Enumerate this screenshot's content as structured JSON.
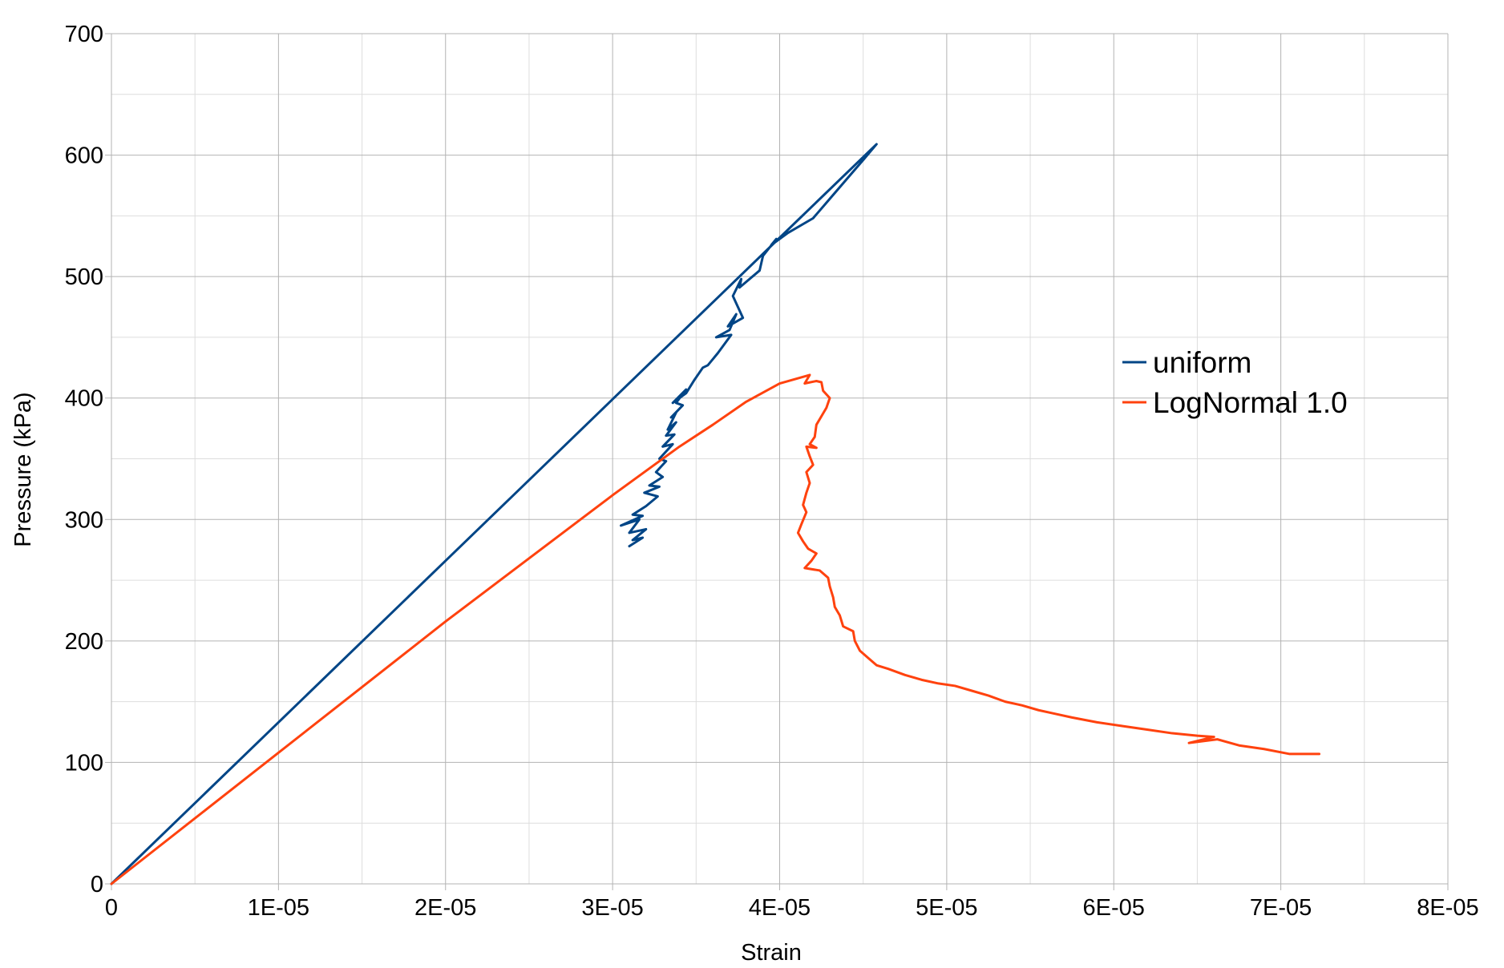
{
  "chart_data": {
    "type": "line",
    "title": "",
    "xlabel": "Strain",
    "ylabel": "Pressure (kPa)",
    "xlim": [
      0,
      8e-05
    ],
    "ylim": [
      0,
      700
    ],
    "x_ticks": [
      "0",
      "1E-05",
      "2E-05",
      "3E-05",
      "4E-05",
      "5E-05",
      "6E-05",
      "7E-05",
      "8E-05"
    ],
    "y_ticks": [
      "0",
      "100",
      "200",
      "300",
      "400",
      "500",
      "600",
      "700"
    ],
    "grid": true,
    "legend_position": "right",
    "series": [
      {
        "name": "uniform",
        "color": "#004586",
        "points": [
          [
            0,
            0
          ],
          [
            1e-05,
            133
          ],
          [
            2e-05,
            266
          ],
          [
            3e-05,
            399
          ],
          [
            4e-05,
            532
          ],
          [
            4.58e-05,
            609
          ],
          [
            4.5e-05,
            596
          ],
          [
            4.4e-05,
            580
          ],
          [
            4.3e-05,
            564
          ],
          [
            4.2e-05,
            548
          ],
          [
            4.05e-05,
            536
          ],
          [
            3.95e-05,
            526
          ],
          [
            3.98e-05,
            531
          ],
          [
            3.9e-05,
            517
          ],
          [
            3.88e-05,
            505
          ],
          [
            3.76e-05,
            491
          ],
          [
            3.77e-05,
            498
          ],
          [
            3.72e-05,
            484
          ],
          [
            3.78e-05,
            466
          ],
          [
            3.69e-05,
            459
          ],
          [
            3.74e-05,
            469
          ],
          [
            3.7e-05,
            456
          ],
          [
            3.62e-05,
            450
          ],
          [
            3.71e-05,
            452
          ],
          [
            3.63e-05,
            437
          ],
          [
            3.57e-05,
            427
          ],
          [
            3.54e-05,
            425
          ],
          [
            3.49e-05,
            415
          ],
          [
            3.44e-05,
            404
          ],
          [
            3.36e-05,
            396
          ],
          [
            3.44e-05,
            407
          ],
          [
            3.38e-05,
            396
          ],
          [
            3.42e-05,
            394
          ],
          [
            3.35e-05,
            384
          ],
          [
            3.38e-05,
            388
          ],
          [
            3.33e-05,
            374
          ],
          [
            3.38e-05,
            380
          ],
          [
            3.32e-05,
            369
          ],
          [
            3.37e-05,
            370
          ],
          [
            3.3e-05,
            360
          ],
          [
            3.36e-05,
            362
          ],
          [
            3.28e-05,
            350
          ],
          [
            3.32e-05,
            348
          ],
          [
            3.26e-05,
            339
          ],
          [
            3.3e-05,
            335
          ],
          [
            3.22e-05,
            328
          ],
          [
            3.28e-05,
            327
          ],
          [
            3.19e-05,
            322
          ],
          [
            3.27e-05,
            319
          ],
          [
            3.2e-05,
            311
          ],
          [
            3.12e-05,
            304
          ],
          [
            3.18e-05,
            303
          ],
          [
            3.05e-05,
            295
          ],
          [
            3.16e-05,
            300
          ],
          [
            3.1e-05,
            289
          ],
          [
            3.2e-05,
            292
          ],
          [
            3.12e-05,
            283
          ],
          [
            3.18e-05,
            285
          ],
          [
            3.1e-05,
            278
          ]
        ]
      },
      {
        "name": "LogNormal 1.0",
        "color": "#ff420e",
        "points": [
          [
            0,
            0
          ],
          [
            1e-05,
            108
          ],
          [
            2e-05,
            216
          ],
          [
            3e-05,
            320
          ],
          [
            3.4e-05,
            360
          ],
          [
            3.6e-05,
            378
          ],
          [
            3.8e-05,
            397
          ],
          [
            4e-05,
            412
          ],
          [
            4.18e-05,
            419
          ],
          [
            4.15e-05,
            412
          ],
          [
            4.22e-05,
            414
          ],
          [
            4.25e-05,
            413
          ],
          [
            4.26e-05,
            406
          ],
          [
            4.3e-05,
            400
          ],
          [
            4.28e-05,
            392
          ],
          [
            4.25e-05,
            385
          ],
          [
            4.22e-05,
            378
          ],
          [
            4.21e-05,
            368
          ],
          [
            4.18e-05,
            362
          ],
          [
            4.22e-05,
            359
          ],
          [
            4.16e-05,
            360
          ],
          [
            4.18e-05,
            352
          ],
          [
            4.2e-05,
            345
          ],
          [
            4.16e-05,
            339
          ],
          [
            4.18e-05,
            330
          ],
          [
            4.16e-05,
            322
          ],
          [
            4.14e-05,
            312
          ],
          [
            4.16e-05,
            306
          ],
          [
            4.13e-05,
            296
          ],
          [
            4.11e-05,
            289
          ],
          [
            4.14e-05,
            282
          ],
          [
            4.17e-05,
            276
          ],
          [
            4.22e-05,
            272
          ],
          [
            4.19e-05,
            266
          ],
          [
            4.15e-05,
            260
          ],
          [
            4.24e-05,
            258
          ],
          [
            4.29e-05,
            252
          ],
          [
            4.3e-05,
            245
          ],
          [
            4.32e-05,
            236
          ],
          [
            4.33e-05,
            228
          ],
          [
            4.36e-05,
            221
          ],
          [
            4.38e-05,
            212
          ],
          [
            4.44e-05,
            208
          ],
          [
            4.45e-05,
            200
          ],
          [
            4.48e-05,
            192
          ],
          [
            4.53e-05,
            186
          ],
          [
            4.58e-05,
            180
          ],
          [
            4.65e-05,
            177
          ],
          [
            4.75e-05,
            172
          ],
          [
            4.85e-05,
            168
          ],
          [
            4.95e-05,
            165
          ],
          [
            5.05e-05,
            163
          ],
          [
            5.15e-05,
            159
          ],
          [
            5.25e-05,
            155
          ],
          [
            5.35e-05,
            150
          ],
          [
            5.45e-05,
            147
          ],
          [
            5.55e-05,
            143
          ],
          [
            5.65e-05,
            140
          ],
          [
            5.75e-05,
            137
          ],
          [
            5.9e-05,
            133
          ],
          [
            6.05e-05,
            130
          ],
          [
            6.2e-05,
            127
          ],
          [
            6.35e-05,
            124
          ],
          [
            6.5e-05,
            122
          ],
          [
            6.6e-05,
            121
          ],
          [
            6.45e-05,
            116
          ],
          [
            6.62e-05,
            119
          ],
          [
            6.75e-05,
            114
          ],
          [
            6.9e-05,
            111
          ],
          [
            7.05e-05,
            107
          ],
          [
            7.15e-05,
            107
          ],
          [
            7.23e-05,
            107
          ]
        ]
      }
    ]
  }
}
